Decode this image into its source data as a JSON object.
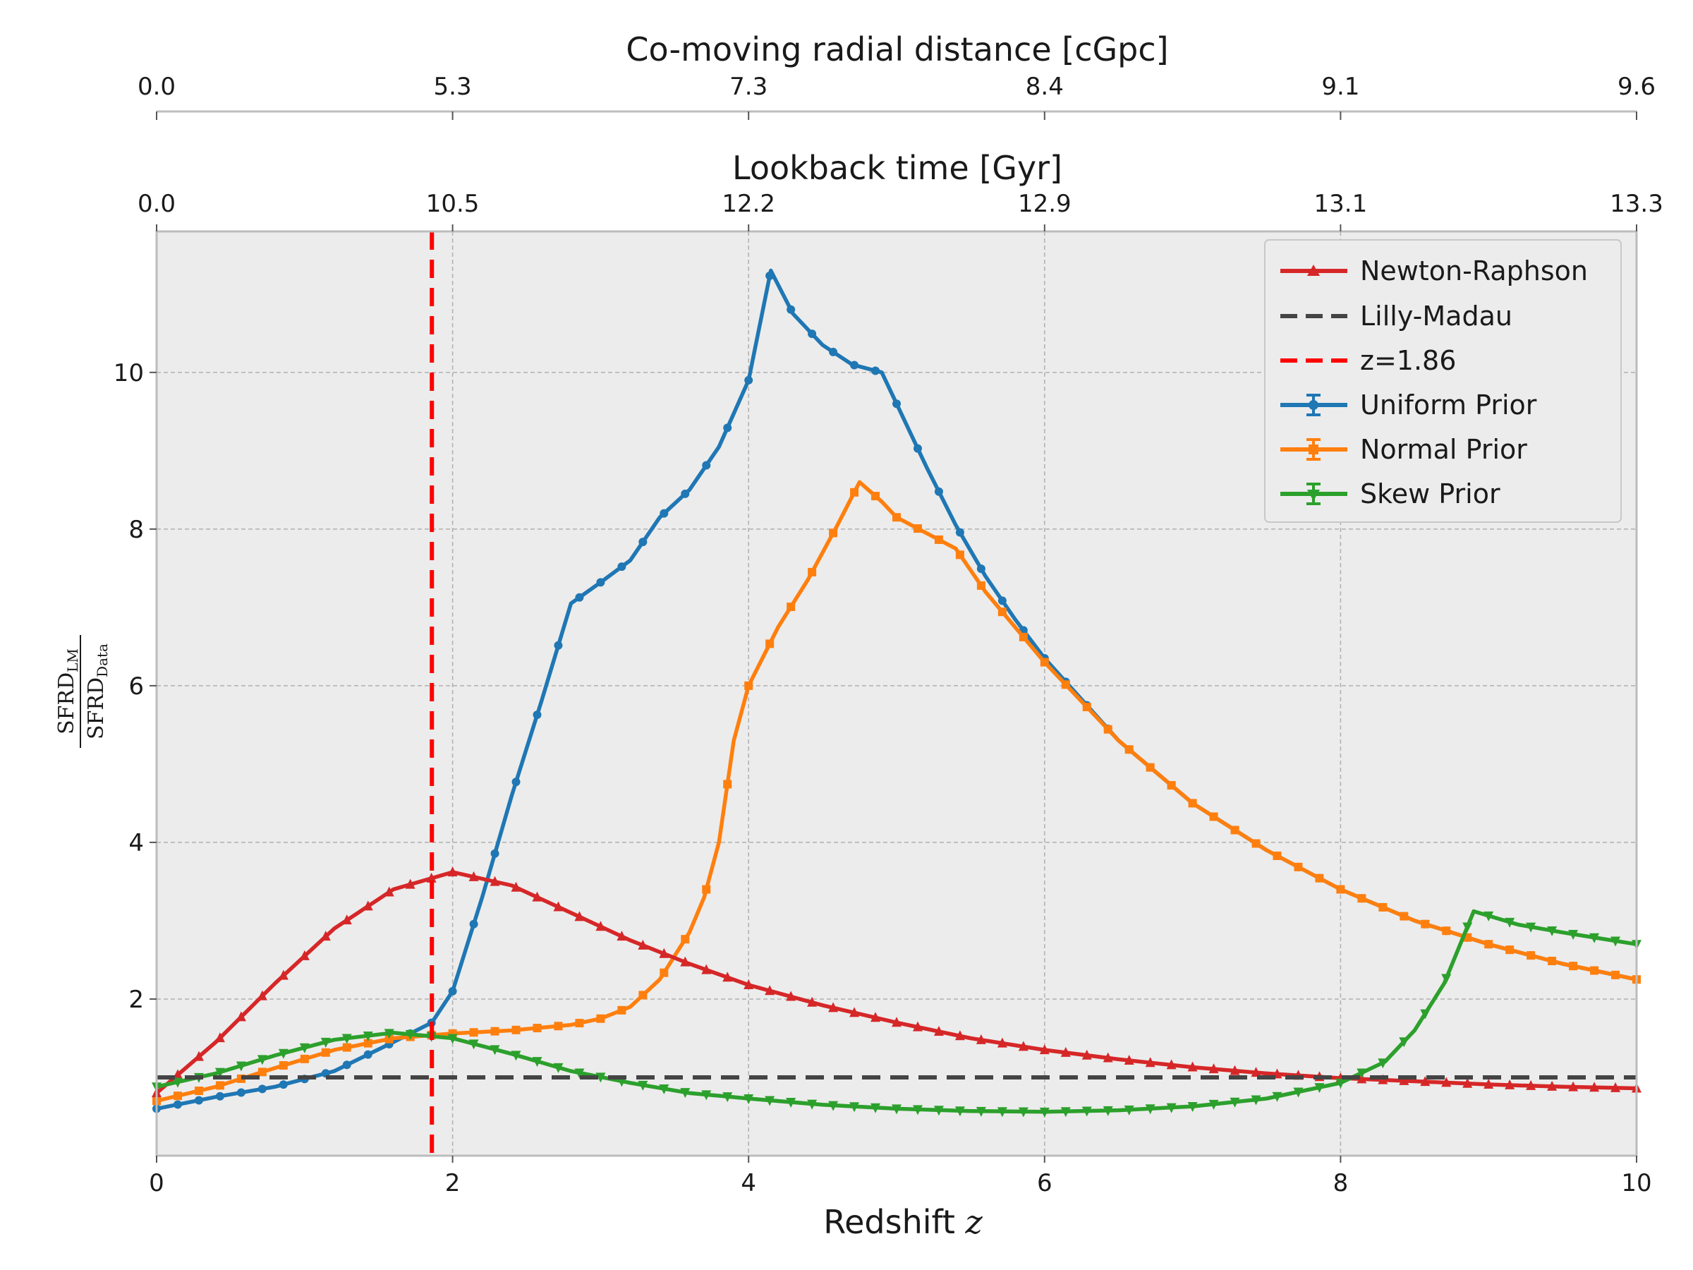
{
  "chart_data": {
    "type": "line",
    "xlabel": "Redshift",
    "xlabel_symbol": "z",
    "ylabel": {
      "numerator": "SFRD",
      "numerator_sub": "LM",
      "denominator": "SFRD",
      "denominator_sub": "Data"
    },
    "xlim": [
      0,
      10
    ],
    "ylim": [
      0,
      11.8
    ],
    "x_ticks": [
      "0",
      "2",
      "4",
      "6",
      "8",
      "10"
    ],
    "y_ticks": [
      "2",
      "4",
      "6",
      "8",
      "10"
    ],
    "top_axis_1": {
      "label": "Lookback time [Gyr]",
      "ticks": [
        "0.0",
        "10.5",
        "12.2",
        "12.9",
        "13.1",
        "13.3"
      ]
    },
    "top_axis_2": {
      "label": "Co-moving radial distance [cGpc]",
      "ticks": [
        "0.0",
        "5.3",
        "7.3",
        "8.4",
        "9.1",
        "9.6"
      ]
    },
    "grid": true,
    "legend_position": "top-right",
    "vline": {
      "x": 1.86,
      "label": "z=1.86",
      "color": "#ff0000"
    },
    "hline": {
      "y": 1.0,
      "label": "Lilly-Madau",
      "color": "#444444"
    },
    "series": [
      {
        "name": "Newton-Raphson",
        "color": "#d62728",
        "marker": "triangle-up",
        "x": [
          0,
          0.4,
          0.8,
          1.2,
          1.6,
          2.0,
          2.4,
          2.8,
          3.2,
          3.6,
          4.0,
          4.5,
          5.0,
          5.5,
          6.0,
          6.5,
          7.0,
          7.5,
          8.0,
          8.5,
          9.0,
          9.5,
          10.0
        ],
        "y": [
          0.8,
          1.45,
          2.2,
          2.9,
          3.4,
          3.62,
          3.45,
          3.1,
          2.75,
          2.45,
          2.18,
          1.92,
          1.7,
          1.5,
          1.35,
          1.23,
          1.13,
          1.05,
          0.99,
          0.95,
          0.91,
          0.88,
          0.86
        ]
      },
      {
        "name": "Uniform Prior",
        "color": "#1f77b4",
        "marker": "circle",
        "x": [
          0,
          0.4,
          0.8,
          1.2,
          1.6,
          1.86,
          2.0,
          2.2,
          2.4,
          2.6,
          2.8,
          3.0,
          3.2,
          3.4,
          3.6,
          3.8,
          4.0,
          4.15,
          4.3,
          4.5,
          4.7,
          4.9,
          5.0,
          5.2,
          5.4,
          5.6,
          5.8,
          6.0,
          6.5,
          7.0,
          7.5,
          8.0,
          8.5,
          9.0,
          9.5,
          10.0
        ],
        "y": [
          0.6,
          0.75,
          0.88,
          1.08,
          1.45,
          1.7,
          2.1,
          3.3,
          4.6,
          5.8,
          7.05,
          7.32,
          7.6,
          8.15,
          8.5,
          9.05,
          9.9,
          11.3,
          10.75,
          10.35,
          10.1,
          10.0,
          9.6,
          8.8,
          8.05,
          7.4,
          6.85,
          6.35,
          5.3,
          4.5,
          3.9,
          3.4,
          3.0,
          2.7,
          2.45,
          2.25
        ]
      },
      {
        "name": "Normal Prior",
        "color": "#ff7f0e",
        "marker": "square",
        "x": [
          0,
          0.4,
          0.8,
          1.2,
          1.6,
          2.0,
          2.4,
          2.8,
          3.0,
          3.2,
          3.4,
          3.6,
          3.7,
          3.8,
          3.9,
          4.0,
          4.2,
          4.4,
          4.6,
          4.75,
          4.9,
          5.0,
          5.2,
          5.4,
          5.6,
          5.8,
          6.0,
          6.5,
          7.0,
          7.5,
          8.0,
          8.5,
          9.0,
          9.5,
          10.0
        ],
        "y": [
          0.7,
          0.88,
          1.12,
          1.35,
          1.5,
          1.56,
          1.6,
          1.67,
          1.75,
          1.9,
          2.25,
          2.85,
          3.3,
          4.0,
          5.3,
          6.0,
          6.75,
          7.35,
          8.05,
          8.6,
          8.35,
          8.15,
          7.95,
          7.75,
          7.2,
          6.75,
          6.3,
          5.3,
          4.5,
          3.9,
          3.4,
          3.0,
          2.7,
          2.45,
          2.25
        ]
      },
      {
        "name": "Skew Prior",
        "color": "#2ca02c",
        "marker": "triangle-down",
        "x": [
          0,
          0.4,
          0.8,
          1.2,
          1.6,
          2.0,
          2.4,
          2.8,
          3.2,
          3.6,
          4.0,
          4.5,
          5.0,
          5.5,
          6.0,
          6.5,
          7.0,
          7.5,
          8.0,
          8.3,
          8.5,
          8.7,
          8.9,
          9.2,
          9.5,
          10.0
        ],
        "y": [
          0.88,
          1.05,
          1.28,
          1.48,
          1.57,
          1.5,
          1.3,
          1.08,
          0.93,
          0.8,
          0.73,
          0.65,
          0.6,
          0.57,
          0.56,
          0.58,
          0.63,
          0.73,
          0.93,
          1.2,
          1.6,
          2.2,
          3.12,
          2.95,
          2.85,
          2.7
        ]
      }
    ]
  }
}
